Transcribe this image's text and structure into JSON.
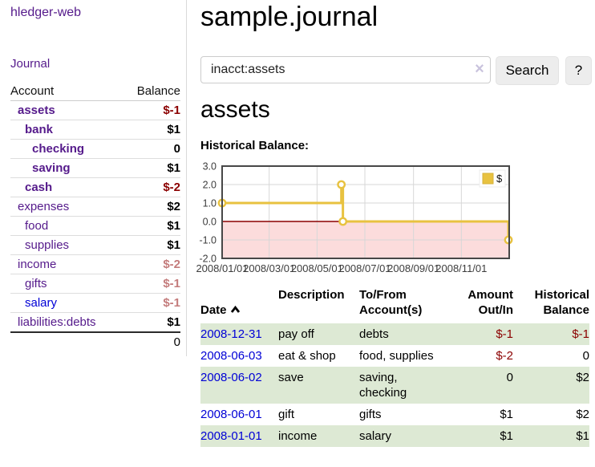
{
  "app_title": "hledger-web",
  "sidebar": {
    "journal_link": "Journal",
    "accounts": {
      "header": {
        "account": "Account",
        "balance": "Balance"
      },
      "rows": [
        {
          "name": "assets",
          "balance": "$-1",
          "depth": 1
        },
        {
          "name": "bank",
          "balance": "$1",
          "depth": 2
        },
        {
          "name": "checking",
          "balance": "0",
          "depth": 3
        },
        {
          "name": "saving",
          "balance": "$1",
          "depth": 3
        },
        {
          "name": "cash",
          "balance": "$-2",
          "depth": 2
        },
        {
          "name": "expenses",
          "balance": "$2",
          "depth": 1
        },
        {
          "name": "food",
          "balance": "$1",
          "depth": 2
        },
        {
          "name": "supplies",
          "balance": "$1",
          "depth": 2
        },
        {
          "name": "income",
          "balance": "$-2",
          "depth": 1
        },
        {
          "name": "gifts",
          "balance": "$-1",
          "depth": 2
        },
        {
          "name": "salary",
          "balance": "$-1",
          "depth": 2
        },
        {
          "name": "liabilities:debts",
          "balance": "$1",
          "depth": 1
        }
      ],
      "total": "0"
    }
  },
  "header": {
    "title": "sample.journal"
  },
  "search": {
    "value": "inacct:assets",
    "clear_icon": "×",
    "search_button": "Search",
    "help_button": "?"
  },
  "account_view": {
    "heading": "assets",
    "chart_title": "Historical Balance:"
  },
  "chart_data": {
    "type": "line",
    "step": true,
    "title": "Historical Balance",
    "series": [
      {
        "name": "$",
        "color": "#e8c240",
        "points": [
          [
            "2008-01-01",
            1
          ],
          [
            "2008-06-01",
            2
          ],
          [
            "2008-06-03",
            0
          ],
          [
            "2008-12-31",
            -1
          ]
        ]
      }
    ],
    "x_ticks": [
      "2008/01/01",
      "2008/03/01",
      "2008/05/01",
      "2008/07/01",
      "2008/09/01",
      "2008/11/01"
    ],
    "y_ticks": [
      3.0,
      2.0,
      1.0,
      0.0,
      -1.0,
      -2.0
    ],
    "xlim": [
      "2008-01-01",
      "2009-01-01"
    ],
    "ylim": [
      -2,
      3
    ],
    "grid": true,
    "legend_position": "top-right",
    "negative_fill": "#fcdcdc",
    "zero_line_color": "#8b0000"
  },
  "register": {
    "headers": {
      "date": "Date",
      "description": "Description",
      "accounts": "To/From\nAccount(s)",
      "amount": "Amount\nOut/In",
      "balance": "Historical\nBalance"
    },
    "rows": [
      {
        "date": "2008-12-31",
        "description": "pay off",
        "accounts": "debts",
        "amount": "$-1",
        "balance": "$-1"
      },
      {
        "date": "2008-06-03",
        "description": "eat & shop",
        "accounts": "food, supplies",
        "amount": "$-2",
        "balance": "0"
      },
      {
        "date": "2008-06-02",
        "description": "save",
        "accounts": "saving, checking",
        "amount": "0",
        "balance": "$2"
      },
      {
        "date": "2008-06-01",
        "description": "gift",
        "accounts": "gifts",
        "amount": "$1",
        "balance": "$2"
      },
      {
        "date": "2008-01-01",
        "description": "income",
        "accounts": "salary",
        "amount": "$1",
        "balance": "$1"
      }
    ]
  },
  "colors": {
    "link_purple": "#551a8b",
    "link_blue": "#0000d6",
    "negative_strong": "#8b0000",
    "negative_muted": "#c47c7c",
    "row_stripe_green": "#dde9d4",
    "chart_line_gold": "#e8c240",
    "chart_negative_pink": "#fcdcdc",
    "chart_zero_line": "#8b0000",
    "button_gray": "#ededed"
  }
}
